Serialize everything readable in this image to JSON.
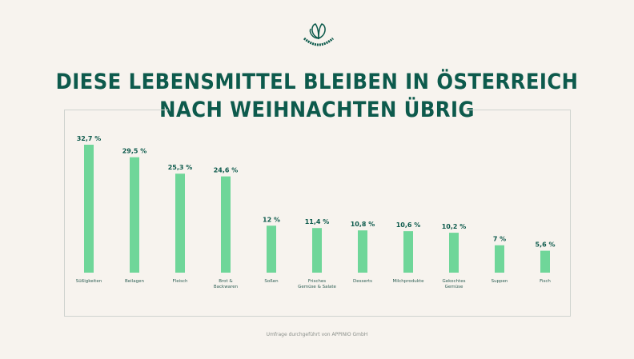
{
  "logo_text": "TOO GOOD TO GO",
  "title_line1": "DIESE LEBENSMITTEL BLEIBEN IN ÖSTERREICH",
  "title_line2": "NACH WEIHNACHTEN ÜBRIG",
  "footer": "Umfrage durchgeführt von APPINIO GmbH",
  "colors": {
    "bar": "#6fd699",
    "text": "#0d5a4c",
    "background": "#f7f3ee"
  },
  "chart_data": {
    "type": "bar",
    "categories": [
      "Süßigkeiten",
      "Beilagen",
      "Fleisch",
      "Brot & Backwaren",
      "Soßen",
      "Frisches Gemüse & Salate",
      "Desserts",
      "Milchprodukte",
      "Gekochtes Gemüse",
      "Suppen",
      "Fisch"
    ],
    "values": [
      32.7,
      29.5,
      25.3,
      24.6,
      12,
      11.4,
      10.8,
      10.6,
      10.2,
      7,
      5.6
    ],
    "labels": [
      "32,7 %",
      "29,5 %",
      "25,3 %",
      "24,6 %",
      "12 %",
      "11,4 %",
      "10,8 %",
      "10,6 %",
      "10,2 %",
      "7 %",
      "5,6 %"
    ],
    "unit": "%",
    "grid": false
  }
}
